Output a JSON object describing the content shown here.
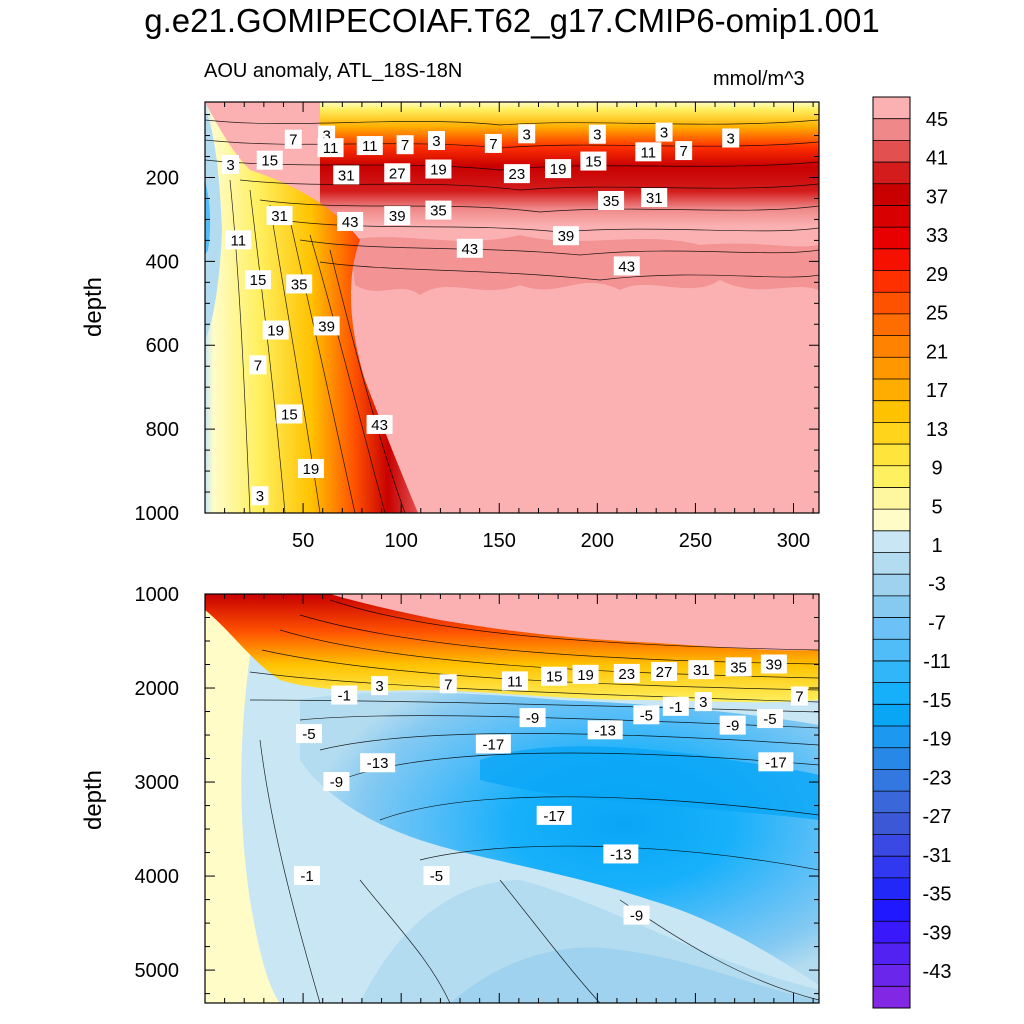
{
  "title": "g.e21.GOMIPECOIAF.T62_g17.CMIP6-omip1.001",
  "subtitle_left": "AOU anomaly, ATL_18S-18N",
  "subtitle_right": "mmol/m^3",
  "chart_data": [
    {
      "type": "contour",
      "panel": "upper",
      "xlabel": "",
      "ylabel": "depth",
      "xlim": [
        0,
        313
      ],
      "ylim": [
        1000,
        20
      ],
      "x_ticks": [
        50,
        100,
        150,
        200,
        250,
        300
      ],
      "y_ticks": [
        200,
        400,
        600,
        800,
        1000
      ],
      "contour_labels": [
        {
          "text": "3",
          "x": 62,
          "y": 100
        },
        {
          "text": "7",
          "x": 45,
          "y": 110
        },
        {
          "text": "11",
          "x": 64,
          "y": 130
        },
        {
          "text": "11",
          "x": 84,
          "y": 125
        },
        {
          "text": "7",
          "x": 102,
          "y": 123
        },
        {
          "text": "3",
          "x": 118,
          "y": 113
        },
        {
          "text": "7",
          "x": 147,
          "y": 120
        },
        {
          "text": "3",
          "x": 164,
          "y": 97
        },
        {
          "text": "3",
          "x": 200,
          "y": 98
        },
        {
          "text": "3",
          "x": 234,
          "y": 93
        },
        {
          "text": "3",
          "x": 268,
          "y": 107
        },
        {
          "text": "11",
          "x": 226,
          "y": 140
        },
        {
          "text": "7",
          "x": 244,
          "y": 137
        },
        {
          "text": "3",
          "x": 13,
          "y": 170
        },
        {
          "text": "15",
          "x": 33,
          "y": 160
        },
        {
          "text": "31",
          "x": 72,
          "y": 195
        },
        {
          "text": "27",
          "x": 98,
          "y": 190
        },
        {
          "text": "19",
          "x": 119,
          "y": 181
        },
        {
          "text": "23",
          "x": 159,
          "y": 192
        },
        {
          "text": "19",
          "x": 180,
          "y": 180
        },
        {
          "text": "15",
          "x": 198,
          "y": 162
        },
        {
          "text": "31",
          "x": 38,
          "y": 292
        },
        {
          "text": "43",
          "x": 74,
          "y": 306
        },
        {
          "text": "39",
          "x": 98,
          "y": 292
        },
        {
          "text": "35",
          "x": 119,
          "y": 279
        },
        {
          "text": "35",
          "x": 207,
          "y": 256
        },
        {
          "text": "31",
          "x": 229,
          "y": 249
        },
        {
          "text": "11",
          "x": 17,
          "y": 350
        },
        {
          "text": "43",
          "x": 135,
          "y": 370
        },
        {
          "text": "39",
          "x": 184,
          "y": 340
        },
        {
          "text": "43",
          "x": 215,
          "y": 412
        },
        {
          "text": "15",
          "x": 27,
          "y": 445
        },
        {
          "text": "35",
          "x": 48,
          "y": 455
        },
        {
          "text": "39",
          "x": 62,
          "y": 555
        },
        {
          "text": "19",
          "x": 36,
          "y": 565
        },
        {
          "text": "7",
          "x": 27,
          "y": 648
        },
        {
          "text": "43",
          "x": 89,
          "y": 790
        },
        {
          "text": "15",
          "x": 43,
          "y": 765
        },
        {
          "text": "19",
          "x": 54,
          "y": 895
        },
        {
          "text": "3",
          "x": 28,
          "y": 960
        }
      ]
    },
    {
      "type": "contour",
      "panel": "lower",
      "xlabel": "",
      "ylabel": "depth",
      "xlim": [
        0,
        313
      ],
      "ylim": [
        5350,
        1000
      ],
      "x_ticks": [
        50,
        100,
        150,
        200,
        250,
        300
      ],
      "y_ticks": [
        1000,
        2000,
        3000,
        4000,
        5000
      ],
      "contour_labels": [
        {
          "text": "-1",
          "x": 71,
          "y": 2080
        },
        {
          "text": "3",
          "x": 89,
          "y": 1980
        },
        {
          "text": "7",
          "x": 124,
          "y": 1960
        },
        {
          "text": "11",
          "x": 158,
          "y": 1930
        },
        {
          "text": "15",
          "x": 178,
          "y": 1880
        },
        {
          "text": "19",
          "x": 194,
          "y": 1860
        },
        {
          "text": "23",
          "x": 215,
          "y": 1850
        },
        {
          "text": "27",
          "x": 234,
          "y": 1830
        },
        {
          "text": "31",
          "x": 253,
          "y": 1810
        },
        {
          "text": "35",
          "x": 272,
          "y": 1780
        },
        {
          "text": "39",
          "x": 290,
          "y": 1750
        },
        {
          "text": "7",
          "x": 303,
          "y": 2090
        },
        {
          "text": "3",
          "x": 254,
          "y": 2150
        },
        {
          "text": "-1",
          "x": 240,
          "y": 2200
        },
        {
          "text": "-5",
          "x": 225,
          "y": 2290
        },
        {
          "text": "-9",
          "x": 167,
          "y": 2320
        },
        {
          "text": "-13",
          "x": 204,
          "y": 2450
        },
        {
          "text": "-9",
          "x": 269,
          "y": 2400
        },
        {
          "text": "-5",
          "x": 288,
          "y": 2330
        },
        {
          "text": "-17",
          "x": 147,
          "y": 2600
        },
        {
          "text": "-17",
          "x": 291,
          "y": 2790
        },
        {
          "text": "-5",
          "x": 53,
          "y": 2490
        },
        {
          "text": "-13",
          "x": 88,
          "y": 2800
        },
        {
          "text": "-9",
          "x": 67,
          "y": 3000
        },
        {
          "text": "-17",
          "x": 178,
          "y": 3360
        },
        {
          "text": "-13",
          "x": 212,
          "y": 3770
        },
        {
          "text": "-1",
          "x": 52,
          "y": 4000
        },
        {
          "text": "-5",
          "x": 118,
          "y": 4000
        },
        {
          "text": "-9",
          "x": 220,
          "y": 4420
        }
      ]
    }
  ],
  "colorbar": {
    "label_values": [
      "45",
      "41",
      "37",
      "33",
      "29",
      "25",
      "21",
      "17",
      "13",
      "9",
      "5",
      "1",
      "-3",
      "-7",
      "-11",
      "-15",
      "-19",
      "-23",
      "-27",
      "-31",
      "-35",
      "-39",
      "-43"
    ],
    "colors": [
      "#fbb0b2",
      "#ef8888",
      "#e25050",
      "#d41c1c",
      "#c80000",
      "#d80000",
      "#e80000",
      "#f61000",
      "#ff3000",
      "#ff5200",
      "#ff6c00",
      "#ff8200",
      "#ff9800",
      "#ffae00",
      "#ffc200",
      "#ffd41a",
      "#ffe43c",
      "#fff060",
      "#fff6a0",
      "#fffcc8",
      "#c8e6f4",
      "#b4dcf0",
      "#9ed2ee",
      "#86caf2",
      "#6cc2f6",
      "#50bcf8",
      "#32b6fa",
      "#16b0fa",
      "#0aa6f6",
      "#1c98f0",
      "#2888e8",
      "#3278e0",
      "#3a68da",
      "#3c58d6",
      "#3a48e4",
      "#3038f0",
      "#2228f8",
      "#2018ff",
      "#3a18fc",
      "#5222f2",
      "#6a26ea",
      "#8228e4"
    ]
  }
}
